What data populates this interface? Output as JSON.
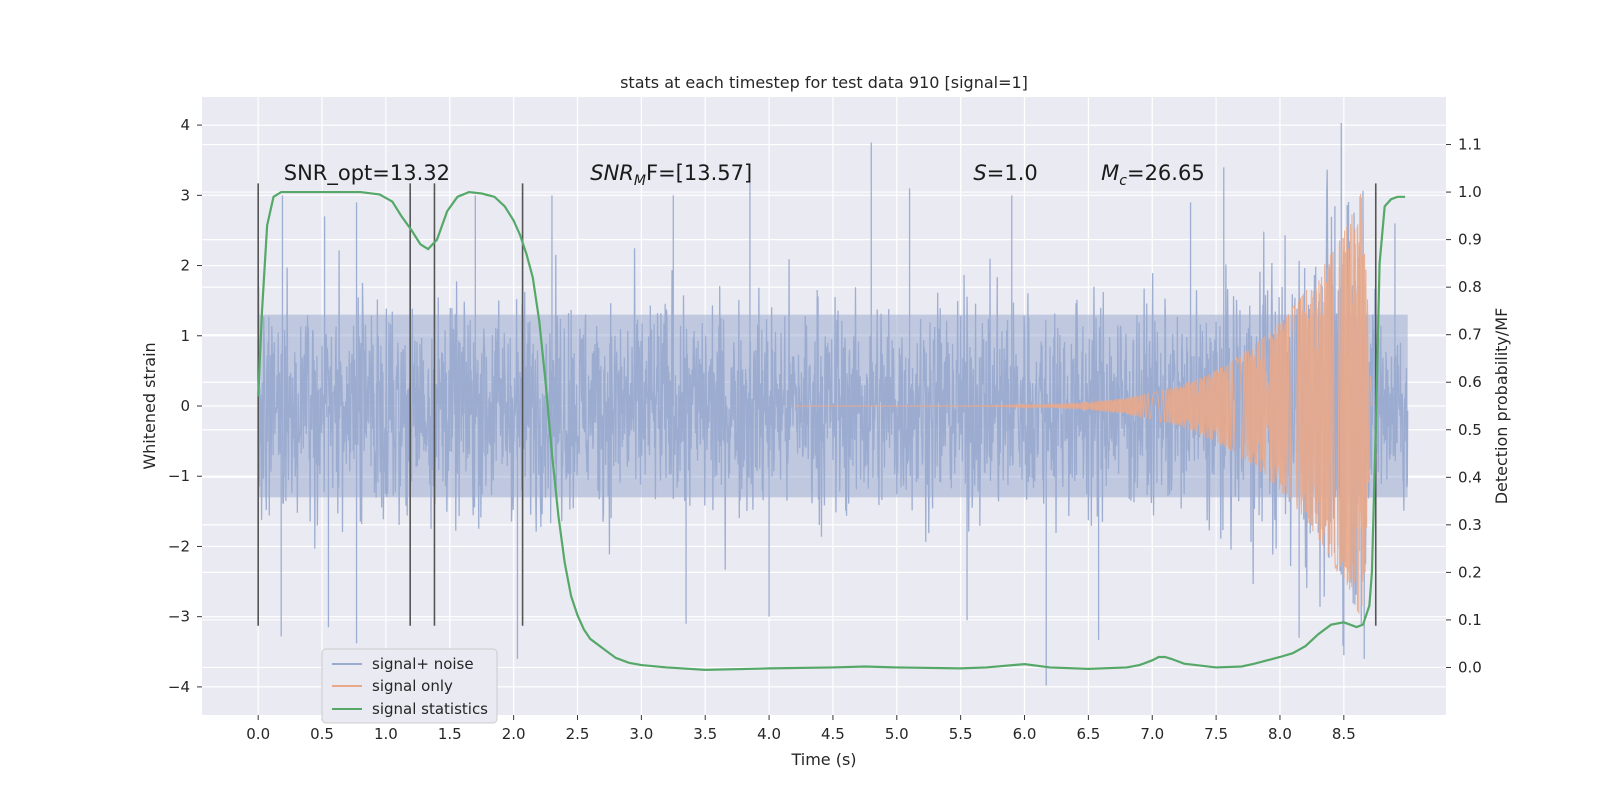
{
  "chart_data": {
    "type": "line",
    "title": "stats at each timestep for test data 910 [signal=1]",
    "xlabel": "Time (s)",
    "ylabel": "Whitened strain",
    "y2label": "Detection probability/MF",
    "xlim": [
      -0.44,
      9.3
    ],
    "ylim": [
      -4.4,
      4.4
    ],
    "y2lim": [
      -0.1,
      1.2
    ],
    "x_ticks": [
      "0.0",
      "0.5",
      "1.0",
      "1.5",
      "2.0",
      "2.5",
      "3.0",
      "3.5",
      "4.0",
      "4.5",
      "5.0",
      "5.5",
      "6.0",
      "6.5",
      "7.0",
      "7.5",
      "8.0",
      "8.5"
    ],
    "y_ticks": [
      "4",
      "3",
      "2",
      "1",
      "0",
      "−1",
      "−2",
      "−3",
      "−4"
    ],
    "y2_ticks": [
      "1.1",
      "1.0",
      "0.9",
      "0.8",
      "0.7",
      "0.6",
      "0.5",
      "0.4",
      "0.3",
      "0.2",
      "0.1",
      "0.0"
    ],
    "grid": true,
    "legend_position": "lower-left",
    "annotations": [
      {
        "prefix": "SNR_opt=13.32",
        "sub": "",
        "suffix": "",
        "x": 0.2,
        "y": 3.22
      },
      {
        "prefix": "SNR",
        "sub": "M",
        "suffix": "F=[13.57]",
        "x": 2.6,
        "y": 3.22
      },
      {
        "prefix": "S",
        "sub": "",
        "suffix": "=1.0",
        "x": 5.6,
        "y": 3.22
      },
      {
        "prefix": "M",
        "sub": "c",
        "suffix": "=26.65",
        "x": 6.6,
        "y": 3.22
      }
    ],
    "vlines": [
      {
        "x": 0.0,
        "y0": -3.13,
        "y1": 3.17
      },
      {
        "x": 1.19,
        "y0": -3.13,
        "y1": 3.17
      },
      {
        "x": 1.38,
        "y0": -3.13,
        "y1": 3.17
      },
      {
        "x": 2.07,
        "y0": -3.13,
        "y1": 3.17
      },
      {
        "x": 8.75,
        "y0": -3.13,
        "y1": 3.17
      }
    ],
    "noise_envelope": {
      "x_start": 0.0,
      "x_end": 9.0,
      "core_amplitude": 1.3,
      "peak_points": [
        {
          "x": 0.19,
          "y": 3.0
        },
        {
          "x": 0.52,
          "y": 2.7
        },
        {
          "x": 0.77,
          "y": 2.9
        },
        {
          "x": 1.7,
          "y": 3.0
        },
        {
          "x": 2.3,
          "y": 3.0
        },
        {
          "x": 3.25,
          "y": 3.0
        },
        {
          "x": 3.85,
          "y": 3.2
        },
        {
          "x": 4.8,
          "y": 3.75
        },
        {
          "x": 5.1,
          "y": 3.1
        },
        {
          "x": 5.9,
          "y": 3.0
        },
        {
          "x": 7.3,
          "y": 2.9
        },
        {
          "x": 7.56,
          "y": 3.4
        },
        {
          "x": 8.48,
          "y": 4.03
        },
        {
          "x": 8.9,
          "y": 2.6
        },
        {
          "x": 0.18,
          "y": -3.28
        },
        {
          "x": 0.55,
          "y": -3.15
        },
        {
          "x": 0.77,
          "y": -3.38
        },
        {
          "x": 2.03,
          "y": -3.6
        },
        {
          "x": 3.35,
          "y": -3.1
        },
        {
          "x": 4.0,
          "y": -3.0
        },
        {
          "x": 5.55,
          "y": -3.05
        },
        {
          "x": 6.17,
          "y": -3.98
        },
        {
          "x": 6.58,
          "y": -3.33
        },
        {
          "x": 8.15,
          "y": -3.3
        },
        {
          "x": 8.5,
          "y": -3.55
        },
        {
          "x": 8.66,
          "y": -3.6
        }
      ]
    },
    "series": [
      {
        "name": "signal+ noise",
        "axis": "left",
        "color": "#9aabd0",
        "kind": "noise"
      },
      {
        "name": "signal only",
        "axis": "left",
        "color": "#e9a88a",
        "kind": "chirp",
        "chirp_start": 4.2,
        "chirp_peak": 8.65,
        "chirp_end": 8.72,
        "peak_amplitude": 3.1
      },
      {
        "name": "signal statistics",
        "axis": "right",
        "color": "#55a868",
        "kind": "line",
        "x": [
          0.0,
          0.03,
          0.07,
          0.12,
          0.18,
          0.3,
          0.5,
          0.8,
          0.95,
          1.05,
          1.12,
          1.2,
          1.27,
          1.33,
          1.4,
          1.48,
          1.56,
          1.65,
          1.75,
          1.85,
          1.93,
          2.0,
          2.05,
          2.1,
          2.15,
          2.2,
          2.25,
          2.3,
          2.35,
          2.4,
          2.45,
          2.5,
          2.55,
          2.6,
          2.7,
          2.8,
          2.9,
          3.0,
          3.2,
          3.5,
          4.0,
          4.5,
          4.75,
          5.0,
          5.5,
          5.7,
          6.0,
          6.2,
          6.5,
          6.8,
          6.9,
          7.0,
          7.05,
          7.1,
          7.15,
          7.25,
          7.5,
          7.7,
          7.8,
          7.9,
          8.0,
          8.1,
          8.2,
          8.3,
          8.4,
          8.5,
          8.55,
          8.6,
          8.65,
          8.7,
          8.72,
          8.75,
          8.78,
          8.82,
          8.87,
          8.92,
          8.98
        ],
        "y": [
          0.57,
          0.75,
          0.93,
          0.99,
          1.0,
          1.0,
          1.0,
          1.0,
          0.995,
          0.98,
          0.95,
          0.92,
          0.89,
          0.88,
          0.9,
          0.96,
          0.99,
          1.0,
          0.997,
          0.99,
          0.97,
          0.94,
          0.91,
          0.87,
          0.82,
          0.73,
          0.6,
          0.45,
          0.32,
          0.22,
          0.15,
          0.11,
          0.08,
          0.06,
          0.04,
          0.02,
          0.01,
          0.005,
          0.0,
          -0.005,
          -0.002,
          0.0,
          0.002,
          0.0,
          -0.002,
          0.0,
          0.007,
          0.0,
          -0.003,
          0.0,
          0.005,
          0.015,
          0.022,
          0.022,
          0.018,
          0.008,
          0.0,
          0.002,
          0.008,
          0.015,
          0.022,
          0.03,
          0.045,
          0.07,
          0.09,
          0.095,
          0.09,
          0.085,
          0.09,
          0.13,
          0.2,
          0.5,
          0.85,
          0.97,
          0.985,
          0.99,
          0.99
        ]
      }
    ]
  }
}
